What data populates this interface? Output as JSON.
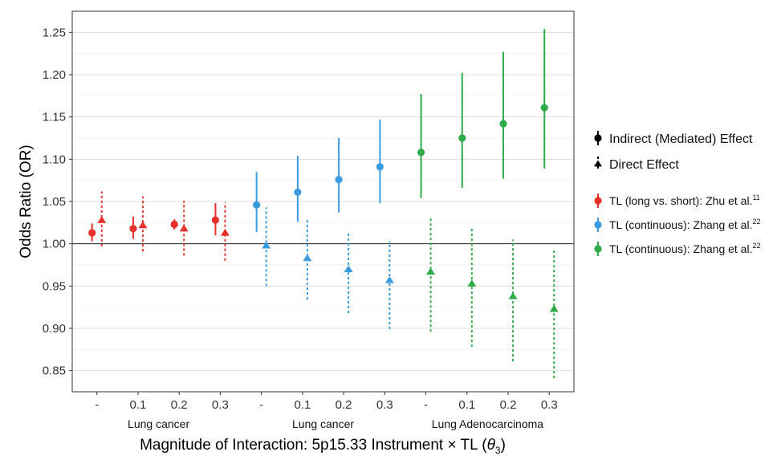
{
  "chart_data": {
    "type": "scatter",
    "xlabel_text": "Magnitude of Interaction: 5p15.33 Instrument × TL (",
    "xlabel_theta": "θ",
    "xlabel_sub": "3",
    "xlabel_close": ")",
    "ylabel": "Odds Ratio (OR)",
    "ylim": [
      0.825,
      1.275
    ],
    "yticks": [
      0.85,
      0.9,
      0.95,
      1.0,
      1.05,
      1.1,
      1.15,
      1.2,
      1.25
    ],
    "ytick_labels": [
      "0.85",
      "0.90",
      "0.95",
      "1.00",
      "1.05",
      "1.10",
      "1.15",
      "1.20",
      "1.25"
    ],
    "reference_line": 1.0,
    "grid": true,
    "categories": [
      "-",
      "0.1",
      "0.2",
      "0.3",
      "-",
      "0.1",
      "0.2",
      "0.3",
      "-",
      "0.1",
      "0.2",
      "0.3"
    ],
    "groups": [
      {
        "label": "Lung cancer",
        "start": 0,
        "end": 3
      },
      {
        "label": "Lung cancer",
        "start": 4,
        "end": 7
      },
      {
        "label": "Lung Adenocarcinoma",
        "start": 8,
        "end": 11
      }
    ],
    "series": [
      {
        "name": "TL (long vs. short): Zhu et al.",
        "sup": "11",
        "color": "#E8302A",
        "indices": [
          0,
          1,
          2,
          3
        ],
        "indirect": [
          {
            "y": 1.013,
            "lo": 1.003,
            "hi": 1.024
          },
          {
            "y": 1.018,
            "lo": 1.006,
            "hi": 1.032
          },
          {
            "y": 1.023,
            "lo": 1.017,
            "hi": 1.029
          },
          {
            "y": 1.028,
            "lo": 1.01,
            "hi": 1.048
          }
        ],
        "direct": [
          {
            "y": 1.028,
            "lo": 0.997,
            "hi": 1.062
          },
          {
            "y": 1.022,
            "lo": 0.991,
            "hi": 1.056
          },
          {
            "y": 1.018,
            "lo": 0.986,
            "hi": 1.051
          },
          {
            "y": 1.013,
            "lo": 0.98,
            "hi": 1.049
          }
        ]
      },
      {
        "name": "TL (continuous): Zhang et al.",
        "sup": "22",
        "color": "#3A9BE0",
        "indices": [
          4,
          5,
          6,
          7
        ],
        "indirect": [
          {
            "y": 1.046,
            "lo": 1.014,
            "hi": 1.085
          },
          {
            "y": 1.061,
            "lo": 1.026,
            "hi": 1.104
          },
          {
            "y": 1.076,
            "lo": 1.037,
            "hi": 1.125
          },
          {
            "y": 1.091,
            "lo": 1.048,
            "hi": 1.147
          }
        ],
        "direct": [
          {
            "y": 0.998,
            "lo": 0.95,
            "hi": 1.043
          },
          {
            "y": 0.983,
            "lo": 0.934,
            "hi": 1.028
          },
          {
            "y": 0.97,
            "lo": 0.918,
            "hi": 1.015
          },
          {
            "y": 0.957,
            "lo": 0.899,
            "hi": 1.003
          }
        ]
      },
      {
        "name": "TL (continuous): Zhang et al.",
        "sup": "22",
        "color": "#2EAA4A",
        "indices": [
          8,
          9,
          10,
          11
        ],
        "indirect": [
          {
            "y": 1.108,
            "lo": 1.054,
            "hi": 1.177
          },
          {
            "y": 1.125,
            "lo": 1.066,
            "hi": 1.202
          },
          {
            "y": 1.142,
            "lo": 1.077,
            "hi": 1.227
          },
          {
            "y": 1.161,
            "lo": 1.089,
            "hi": 1.254
          }
        ],
        "direct": [
          {
            "y": 0.967,
            "lo": 0.896,
            "hi": 1.032
          },
          {
            "y": 0.953,
            "lo": 0.878,
            "hi": 1.018
          },
          {
            "y": 0.938,
            "lo": 0.861,
            "hi": 1.005
          },
          {
            "y": 0.923,
            "lo": 0.841,
            "hi": 0.994
          }
        ]
      }
    ],
    "legend": {
      "position": "right",
      "shape_entries": [
        {
          "label": "Indirect (Mediated) Effect",
          "shape": "circle",
          "line": "solid"
        },
        {
          "label": "Direct Effect",
          "shape": "triangle",
          "line": "dashed"
        }
      ]
    }
  }
}
